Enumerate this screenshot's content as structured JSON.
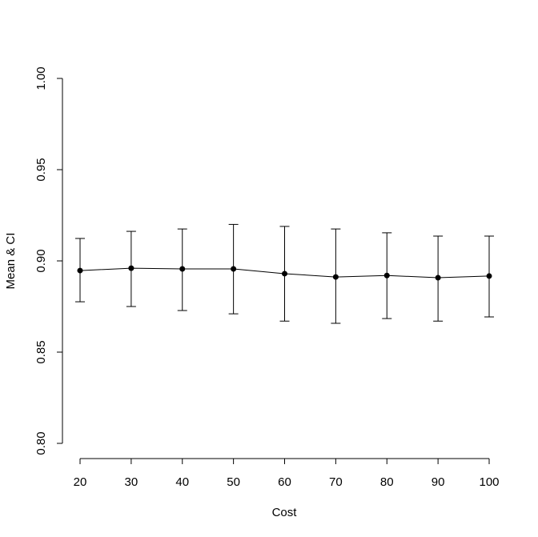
{
  "chart_data": {
    "type": "line",
    "xlabel": "Cost",
    "ylabel": "Mean & CI",
    "x": [
      20,
      30,
      40,
      50,
      60,
      70,
      80,
      90,
      100
    ],
    "series": [
      {
        "color": "#000000",
        "values": [
          0.8947,
          0.896,
          0.8956,
          0.8956,
          0.893,
          0.8912,
          0.892,
          0.8908,
          0.8917
        ],
        "lower": [
          0.8776,
          0.875,
          0.8728,
          0.871,
          0.867,
          0.8658,
          0.8684,
          0.867,
          0.8693
        ],
        "upper": [
          0.9123,
          0.9162,
          0.9175,
          0.92,
          0.9189,
          0.9175,
          0.9154,
          0.9136,
          0.9136
        ]
      }
    ],
    "xlim": [
      20,
      100
    ],
    "xticks": [
      20,
      30,
      40,
      50,
      60,
      70,
      80,
      90,
      100
    ],
    "ylim": [
      0.8,
      1.0
    ],
    "yticks": [
      {
        "value": 0.8,
        "label": "0.80"
      },
      0.85,
      {
        "value": 0.9,
        "label": "0.90"
      },
      0.95,
      {
        "value": 1.0,
        "label": "1.00"
      }
    ]
  }
}
